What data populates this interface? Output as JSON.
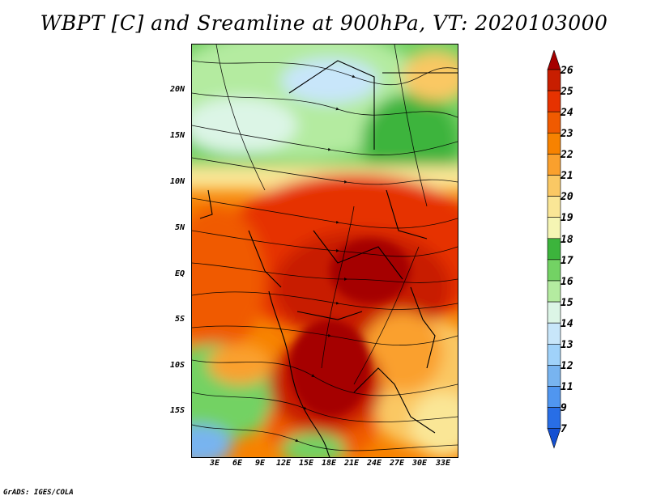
{
  "title": "WBPT [C] and Sreamline at 900hPa, VT: 2020103000",
  "credit": "GrADS: IGES/COLA",
  "map": {
    "lat_labels": [
      "20N",
      "15N",
      "10N",
      "5N",
      "EQ",
      "5S",
      "10S",
      "15S"
    ],
    "lon_labels": [
      "3E",
      "6E",
      "9E",
      "12E",
      "15E",
      "18E",
      "21E",
      "24E",
      "27E",
      "30E",
      "33E"
    ]
  },
  "colorbar": {
    "labels": [
      "26",
      "25",
      "24",
      "23",
      "22",
      "21",
      "20",
      "19",
      "18",
      "17",
      "16",
      "15",
      "14",
      "13",
      "12",
      "11",
      "9",
      "7"
    ],
    "colors": [
      "#a50000",
      "#c81e00",
      "#e63200",
      "#f05a00",
      "#f78200",
      "#faa02d",
      "#fac864",
      "#fae696",
      "#f5f5b4",
      "#3cb43c",
      "#73d264",
      "#b4eba0",
      "#dcf5e6",
      "#c8e6fa",
      "#a0d2fa",
      "#78b4f0",
      "#5096f0",
      "#286ee6",
      "#1450d2"
    ]
  }
}
